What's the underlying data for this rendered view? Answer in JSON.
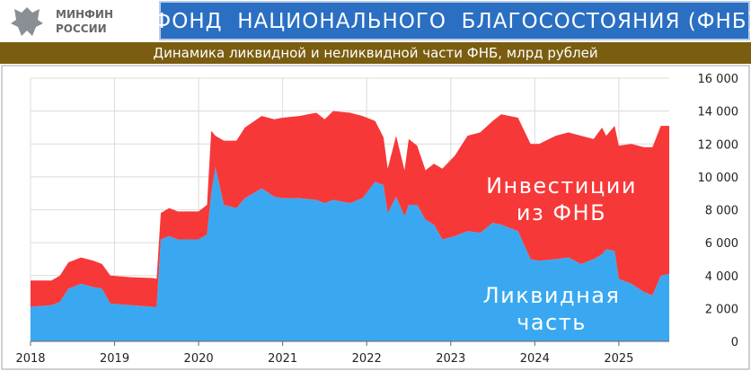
{
  "header": {
    "org": [
      "МИНФИН",
      "РОССИИ"
    ],
    "title": "ФОНД  НАЦИОНАЛЬНОГО  БЛАГОСОСТОЯНИЯ (ФНБ)"
  },
  "chart_data": {
    "type": "stacked_area",
    "title": "Динамика ликвидной и неликвидной части ФНБ, млрд рублей",
    "x": [
      2018.0,
      2018.25,
      2018.35,
      2018.45,
      2018.6,
      2018.75,
      2018.85,
      2018.95,
      2019.2,
      2019.45,
      2019.5,
      2019.55,
      2019.65,
      2019.75,
      2020.0,
      2020.1,
      2020.15,
      2020.2,
      2020.3,
      2020.45,
      2020.55,
      2020.75,
      2020.9,
      2021.0,
      2021.2,
      2021.4,
      2021.5,
      2021.6,
      2021.8,
      2021.95,
      2022.1,
      2022.2,
      2022.25,
      2022.35,
      2022.45,
      2022.5,
      2022.6,
      2022.7,
      2022.8,
      2022.9,
      2023.05,
      2023.2,
      2023.35,
      2023.5,
      2023.6,
      2023.8,
      2023.95,
      2024.05,
      2024.25,
      2024.4,
      2024.55,
      2024.7,
      2024.8,
      2024.85,
      2024.95,
      2025.0,
      2025.15,
      2025.3,
      2025.4,
      2025.5,
      2025.6
    ],
    "series": [
      {
        "name": "Ликвидная часть",
        "color": "#3aa8f0",
        "values": [
          2100,
          2200,
          2400,
          3200,
          3500,
          3300,
          3200,
          2300,
          2200,
          2100,
          2100,
          6200,
          6400,
          6200,
          6200,
          6500,
          9000,
          10600,
          8300,
          8100,
          8700,
          9300,
          8800,
          8700,
          8700,
          8600,
          8400,
          8600,
          8400,
          8700,
          9700,
          9500,
          7800,
          8800,
          7600,
          8300,
          8300,
          7400,
          7100,
          6200,
          6400,
          6700,
          6600,
          7200,
          7100,
          6700,
          5000,
          4900,
          5000,
          5100,
          4700,
          5000,
          5300,
          5600,
          5500,
          3800,
          3500,
          3000,
          2800,
          4000,
          4100
        ]
      },
      {
        "name": "Инвестиции из ФНБ",
        "color": "#f73838",
        "values": [
          1600,
          1500,
          1600,
          1600,
          1600,
          1600,
          1500,
          1700,
          1700,
          1750,
          1700,
          1600,
          1700,
          1700,
          1700,
          1800,
          3800,
          1900,
          3900,
          4100,
          4300,
          4400,
          4700,
          4900,
          5000,
          5300,
          5100,
          5400,
          5500,
          5000,
          3700,
          2900,
          2700,
          3700,
          2800,
          4000,
          3600,
          3000,
          3700,
          4300,
          4900,
          5800,
          6100,
          6200,
          6700,
          6900,
          7000,
          7100,
          7500,
          7600,
          7800,
          7300,
          7700,
          6900,
          7600,
          8100,
          8500,
          8800,
          9000,
          9100,
          9000
        ]
      }
    ],
    "xlim": [
      2018,
      2025.6
    ],
    "xticks": [
      2018,
      2019,
      2020,
      2021,
      2022,
      2023,
      2024,
      2025
    ],
    "ylim": [
      0,
      16000
    ],
    "yticks": [
      0,
      {
        "value": 2000,
        "label": "2 000"
      },
      {
        "value": 4000,
        "label": "4 000"
      },
      {
        "value": 6000,
        "label": "6 000"
      },
      {
        "value": 8000,
        "label": "8 000"
      },
      {
        "value": 10000,
        "label": "10 000"
      },
      {
        "value": 12000,
        "label": "12 000"
      },
      {
        "value": 14000,
        "label": "14 000"
      },
      {
        "value": 16000,
        "label": "16 000"
      }
    ],
    "grid": true
  }
}
